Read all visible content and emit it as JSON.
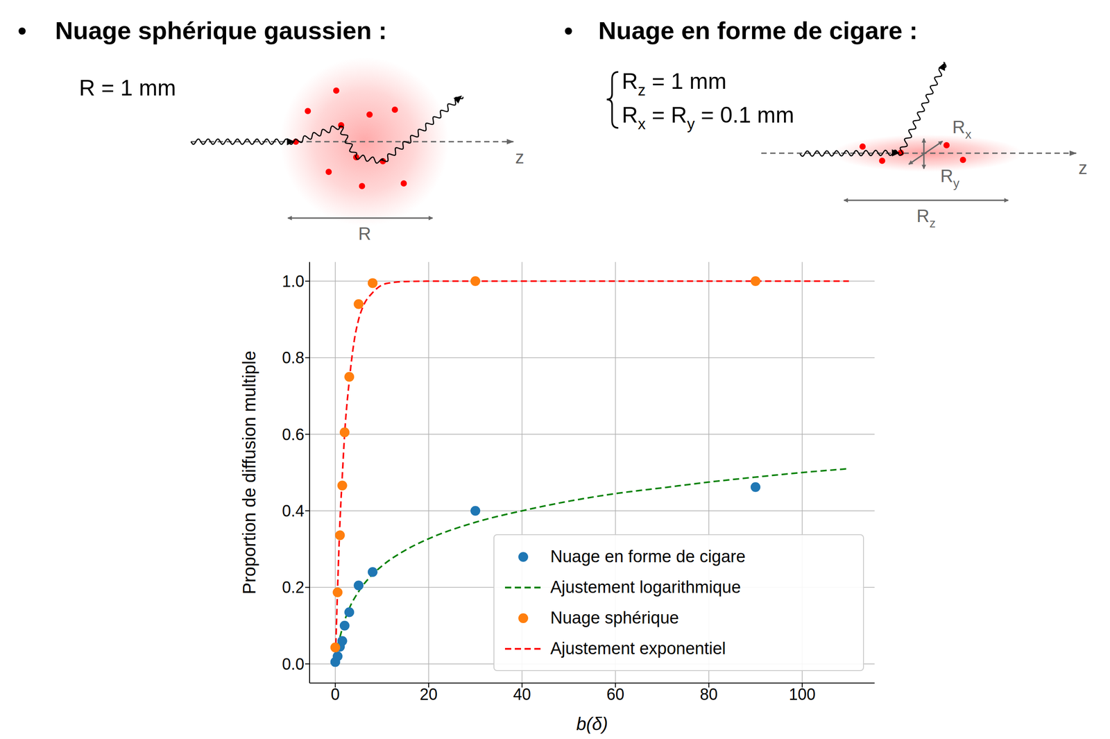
{
  "diagrams": [
    {
      "bullet": "•",
      "title": "Nuage sphérique gaussien :",
      "params": [
        [
          {
            "text": "R = 1 mm"
          }
        ]
      ],
      "size_labels": [
        [
          {
            "text": "R"
          }
        ]
      ],
      "axis_label": "z"
    },
    {
      "bullet": "•",
      "title": "Nuage en forme de cigare :",
      "params": [
        [
          {
            "text": "R"
          },
          {
            "text": "z",
            "sub": true
          },
          {
            "text": " = 1 mm"
          }
        ],
        [
          {
            "text": "R"
          },
          {
            "text": "x",
            "sub": true
          },
          {
            "text": " = R"
          },
          {
            "text": "y",
            "sub": true
          },
          {
            "text": " = 0.1 mm"
          }
        ]
      ],
      "size_labels": [
        [
          {
            "text": "R"
          },
          {
            "text": "x",
            "sub": true
          }
        ],
        [
          {
            "text": "R"
          },
          {
            "text": "y",
            "sub": true
          }
        ],
        [
          {
            "text": "R"
          },
          {
            "text": "z",
            "sub": true
          }
        ]
      ],
      "axis_label": "z"
    }
  ],
  "chart_data": {
    "type": "scatter",
    "x_label": "b(δ)",
    "y_label": "Proportion de diffusion multiple",
    "xlim": [
      -5.5,
      115.5
    ],
    "ylim": [
      -0.05,
      1.05
    ],
    "xticks": [
      0,
      20,
      40,
      60,
      80,
      100
    ],
    "yticks": [
      {
        "value": 0,
        "label": "0.0"
      },
      {
        "value": 0.2,
        "label": "0.2"
      },
      {
        "value": 0.4,
        "label": "0.4"
      },
      {
        "value": 0.6,
        "label": "0.6"
      },
      {
        "value": 0.8,
        "label": "0.8"
      },
      {
        "value": 1,
        "label": "1.0"
      }
    ],
    "grid": true,
    "legend": "lower right",
    "series": [
      {
        "name": "Nuage en forme de cigare",
        "type": "scatter",
        "marker": "circle",
        "color": "#1f77b4",
        "x": [
          0,
          0.5,
          1,
          1.5,
          2,
          3,
          5,
          8,
          30,
          90
        ],
        "values": [
          0.005,
          0.02,
          0.045,
          0.06,
          0.1,
          0.135,
          0.205,
          0.24,
          0.4,
          0.462
        ]
      },
      {
        "name": "Ajustement logarithmique",
        "type": "line",
        "line_style": "dashed",
        "color": "#008000",
        "x": [
          1,
          2,
          3,
          5,
          8,
          10,
          15,
          20,
          30,
          40,
          50,
          60,
          70,
          80,
          90,
          100,
          110
        ],
        "values": [
          0.07,
          0.113,
          0.145,
          0.189,
          0.234,
          0.256,
          0.297,
          0.327,
          0.37,
          0.4,
          0.425,
          0.445,
          0.46,
          0.475,
          0.488,
          0.5,
          0.51
        ]
      },
      {
        "name": "Nuage sphérique",
        "type": "scatter",
        "marker": "circle",
        "color": "#ff7f0e",
        "x": [
          0,
          0.5,
          1,
          1.5,
          2,
          3,
          5,
          8,
          30,
          90
        ],
        "values": [
          0.043,
          0.187,
          0.336,
          0.466,
          0.605,
          0.75,
          0.94,
          0.995,
          1.0,
          1.0
        ]
      },
      {
        "name": "Ajustement exponentiel",
        "type": "line",
        "line_style": "dashed",
        "color": "#ff0000",
        "x": [
          0,
          0.5,
          1,
          1.5,
          2,
          3,
          4,
          5,
          6,
          8,
          10,
          12,
          15,
          20,
          30,
          50,
          80,
          110
        ],
        "values": [
          0.0,
          0.2,
          0.37,
          0.49,
          0.6,
          0.74,
          0.84,
          0.9,
          0.935,
          0.97,
          0.99,
          0.996,
          0.999,
          1.0,
          1.0,
          1.0,
          1.0,
          1.0
        ]
      }
    ]
  }
}
